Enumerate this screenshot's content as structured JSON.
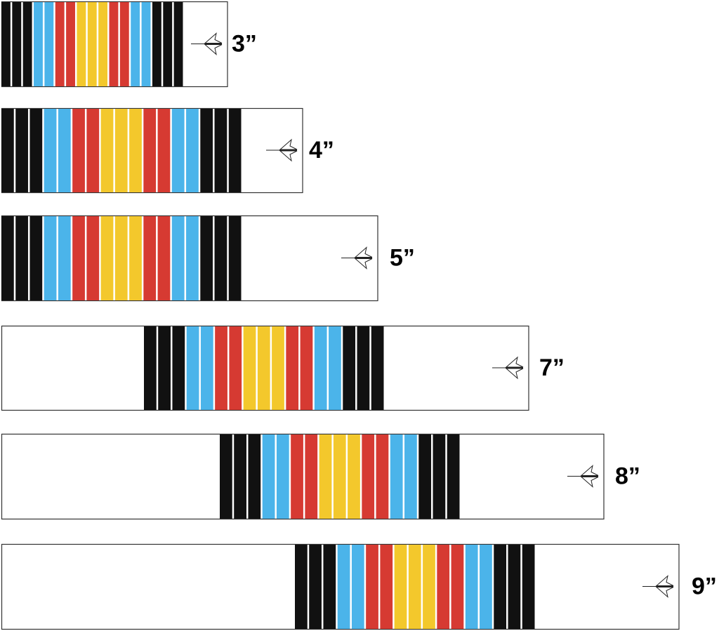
{
  "wraps": [
    {
      "label": "3”"
    },
    {
      "label": "4”"
    },
    {
      "label": "5”"
    },
    {
      "label": "7”"
    },
    {
      "label": "8”"
    },
    {
      "label": "9”"
    }
  ]
}
